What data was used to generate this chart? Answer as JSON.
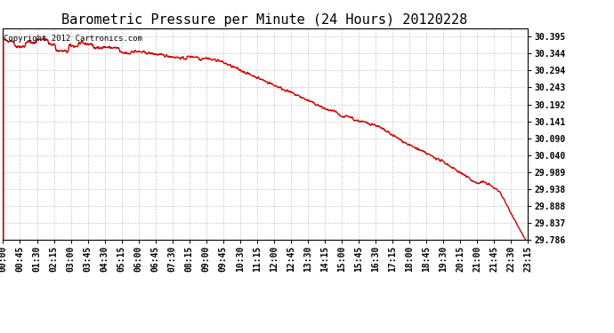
{
  "title": "Barometric Pressure per Minute (24 Hours) 20120228",
  "copyright_text": "Copyright 2012 Cartronics.com",
  "line_color": "#cc0000",
  "background_color": "#ffffff",
  "plot_bg_color": "#ffffff",
  "grid_color": "#bbbbbb",
  "yticks": [
    29.786,
    29.837,
    29.888,
    29.938,
    29.989,
    30.04,
    30.09,
    30.141,
    30.192,
    30.243,
    30.294,
    30.344,
    30.395
  ],
  "ytick_labels": [
    "29.786",
    "29.837",
    "29.888",
    "29.938",
    "29.989",
    "30.040",
    "30.090",
    "30.141",
    "30.192",
    "30.243",
    "30.294",
    "30.344",
    "30.395"
  ],
  "ylim": [
    29.786,
    30.42
  ],
  "xtick_labels": [
    "00:00",
    "00:45",
    "01:30",
    "02:15",
    "03:00",
    "03:45",
    "04:30",
    "05:15",
    "06:00",
    "06:45",
    "07:30",
    "08:15",
    "09:00",
    "09:45",
    "10:30",
    "11:15",
    "12:00",
    "12:45",
    "13:30",
    "14:15",
    "15:00",
    "15:45",
    "16:30",
    "17:15",
    "18:00",
    "18:45",
    "19:30",
    "20:15",
    "21:00",
    "21:45",
    "22:30",
    "23:15"
  ],
  "title_fontsize": 11,
  "copyright_fontsize": 6.5,
  "tick_fontsize": 7,
  "line_width": 1.0
}
